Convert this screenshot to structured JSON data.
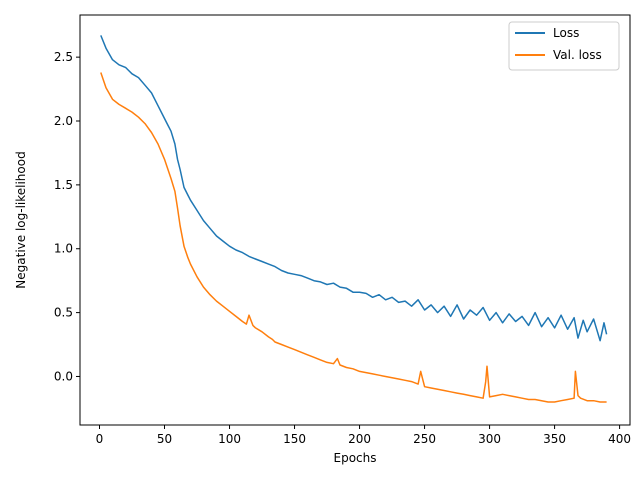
{
  "chart_data": {
    "type": "line",
    "title": "",
    "xlabel": "Epochs",
    "ylabel": "Negative log-likelihood",
    "xlim": [
      -15,
      408
    ],
    "ylim": [
      -0.38,
      2.83
    ],
    "xticks": [
      0,
      50,
      100,
      150,
      200,
      250,
      300,
      350,
      400
    ],
    "yticks": [
      0.0,
      0.5,
      1.0,
      1.5,
      2.0,
      2.5
    ],
    "xtick_labels": [
      "0",
      "50",
      "100",
      "150",
      "200",
      "250",
      "300",
      "350",
      "400"
    ],
    "ytick_labels": [
      "0.0",
      "0.5",
      "1.0",
      "1.5",
      "2.0",
      "2.5"
    ],
    "grid": false,
    "legend_position": "top-right",
    "series": [
      {
        "name": "Loss",
        "color": "#1f77b4",
        "x": [
          1,
          5,
          10,
          15,
          20,
          25,
          30,
          35,
          40,
          45,
          50,
          52,
          55,
          58,
          60,
          62,
          65,
          68,
          70,
          75,
          80,
          85,
          90,
          95,
          100,
          105,
          110,
          115,
          120,
          125,
          130,
          135,
          140,
          145,
          150,
          155,
          160,
          165,
          170,
          175,
          180,
          185,
          190,
          195,
          200,
          205,
          210,
          215,
          220,
          225,
          230,
          235,
          240,
          245,
          250,
          255,
          260,
          265,
          270,
          275,
          280,
          285,
          290,
          295,
          300,
          305,
          310,
          315,
          320,
          325,
          330,
          335,
          340,
          345,
          350,
          355,
          360,
          365,
          368,
          372,
          375,
          380,
          385,
          388,
          390
        ],
        "y": [
          2.67,
          2.57,
          2.48,
          2.44,
          2.42,
          2.37,
          2.34,
          2.28,
          2.22,
          2.12,
          2.02,
          1.98,
          1.92,
          1.82,
          1.7,
          1.62,
          1.48,
          1.42,
          1.38,
          1.3,
          1.22,
          1.16,
          1.1,
          1.06,
          1.02,
          0.99,
          0.97,
          0.94,
          0.92,
          0.9,
          0.88,
          0.86,
          0.83,
          0.81,
          0.8,
          0.79,
          0.77,
          0.75,
          0.74,
          0.72,
          0.73,
          0.7,
          0.69,
          0.66,
          0.66,
          0.65,
          0.62,
          0.64,
          0.6,
          0.62,
          0.58,
          0.59,
          0.55,
          0.6,
          0.52,
          0.56,
          0.5,
          0.55,
          0.47,
          0.56,
          0.45,
          0.52,
          0.48,
          0.54,
          0.44,
          0.5,
          0.42,
          0.49,
          0.43,
          0.47,
          0.4,
          0.5,
          0.39,
          0.46,
          0.38,
          0.48,
          0.37,
          0.46,
          0.3,
          0.44,
          0.35,
          0.45,
          0.28,
          0.42,
          0.33
        ]
      },
      {
        "name": "Val. loss",
        "color": "#ff7f0e",
        "x": [
          1,
          5,
          10,
          15,
          20,
          25,
          30,
          35,
          40,
          45,
          50,
          55,
          58,
          60,
          62,
          65,
          68,
          70,
          75,
          80,
          85,
          90,
          95,
          100,
          105,
          110,
          113,
          115,
          118,
          120,
          125,
          130,
          133,
          135,
          140,
          145,
          150,
          155,
          160,
          165,
          170,
          175,
          180,
          183,
          185,
          190,
          195,
          200,
          205,
          210,
          215,
          220,
          225,
          230,
          235,
          240,
          245,
          247,
          250,
          255,
          260,
          265,
          270,
          275,
          280,
          285,
          290,
          295,
          297,
          298,
          300,
          305,
          310,
          315,
          320,
          325,
          330,
          335,
          340,
          345,
          350,
          355,
          360,
          365,
          366,
          368,
          370,
          375,
          380,
          385,
          390
        ],
        "y": [
          2.38,
          2.26,
          2.17,
          2.13,
          2.1,
          2.07,
          2.03,
          1.98,
          1.91,
          1.82,
          1.7,
          1.55,
          1.45,
          1.32,
          1.18,
          1.02,
          0.93,
          0.88,
          0.78,
          0.7,
          0.64,
          0.59,
          0.55,
          0.51,
          0.47,
          0.43,
          0.41,
          0.48,
          0.4,
          0.38,
          0.35,
          0.31,
          0.29,
          0.27,
          0.25,
          0.23,
          0.21,
          0.19,
          0.17,
          0.15,
          0.13,
          0.11,
          0.1,
          0.14,
          0.09,
          0.07,
          0.06,
          0.04,
          0.03,
          0.02,
          0.01,
          0.0,
          -0.01,
          -0.02,
          -0.03,
          -0.04,
          -0.06,
          0.04,
          -0.08,
          -0.09,
          -0.1,
          -0.11,
          -0.12,
          -0.13,
          -0.14,
          -0.15,
          -0.16,
          -0.17,
          -0.04,
          0.08,
          -0.16,
          -0.15,
          -0.14,
          -0.15,
          -0.16,
          -0.17,
          -0.18,
          -0.18,
          -0.19,
          -0.2,
          -0.2,
          -0.19,
          -0.18,
          -0.17,
          0.04,
          -0.15,
          -0.17,
          -0.19,
          -0.19,
          -0.2,
          -0.2
        ]
      }
    ]
  }
}
